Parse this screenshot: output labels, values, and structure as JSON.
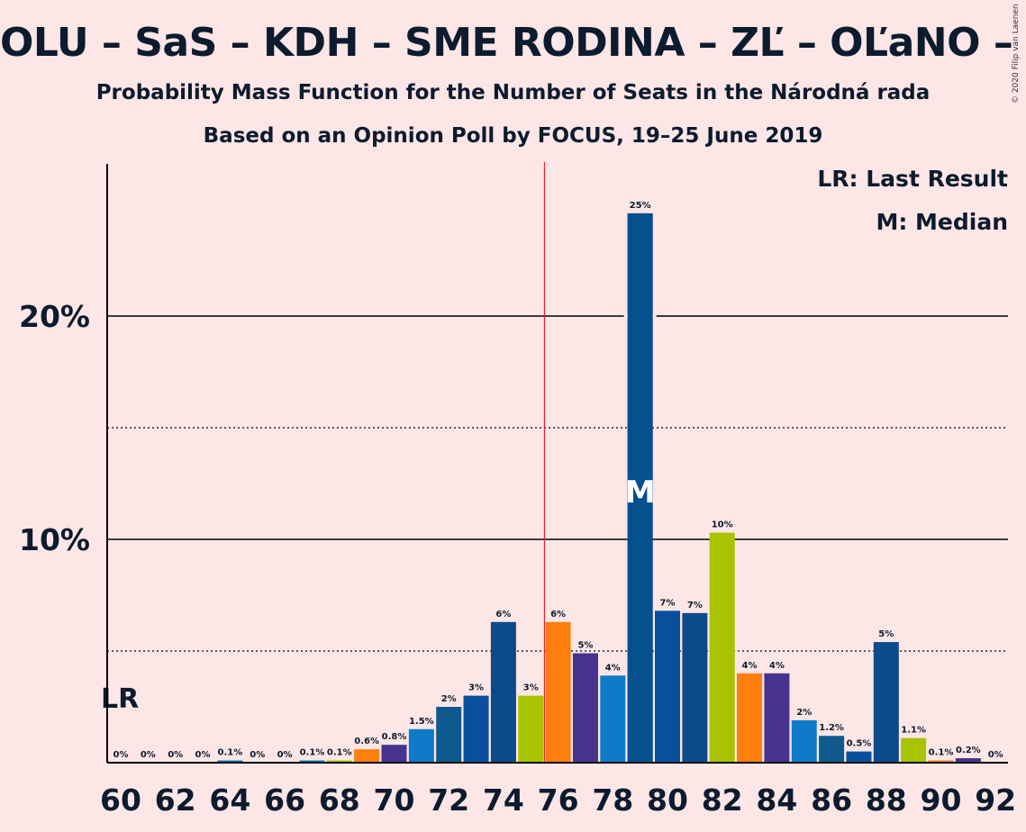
{
  "title": "OLU – SaS – KDH – SME RODINA – ZĽ – OĽaNO – MOS",
  "subtitle1": "Probability Mass Function for the Number of Seats in the Národná rada",
  "subtitle2": "Based on an Opinion Poll by FOCUS, 19–25 June 2019",
  "copyright": "© 2020 Filip van Laenen",
  "legend": {
    "lr": "LR: Last Result",
    "median": "M: Median"
  },
  "markers": {
    "lr_label": "LR",
    "median_label": "M"
  },
  "chart_data": {
    "type": "bar",
    "title": "OLU – SaS – KDH – SME RODINA – ZĽ – OĽaNO – MOS",
    "x": [
      60,
      61,
      62,
      63,
      64,
      65,
      66,
      67,
      68,
      69,
      70,
      71,
      72,
      73,
      74,
      75,
      76,
      77,
      78,
      79,
      80,
      81,
      82,
      83,
      84,
      85,
      86,
      87,
      88,
      89,
      90,
      91,
      92
    ],
    "values": [
      0,
      0,
      0,
      0,
      0.1,
      0,
      0,
      0.1,
      0.1,
      0.6,
      0.8,
      1.5,
      2.5,
      3.0,
      6.3,
      3.0,
      6.3,
      4.9,
      3.9,
      24.6,
      6.8,
      6.7,
      10.3,
      4.0,
      4.0,
      1.9,
      1.2,
      0.5,
      5.4,
      1.1,
      0.1,
      0.2,
      0
    ],
    "labels": [
      "0%",
      "0%",
      "0%",
      "0%",
      "0.1%",
      "0%",
      "0%",
      "0.1%",
      "0.1%",
      "0.6%",
      "0.8%",
      "1.5%",
      "2%",
      "3%",
      "6%",
      "3%",
      "6%",
      "5%",
      "4%",
      "25%",
      "7%",
      "7%",
      "10%",
      "4%",
      "4%",
      "2%",
      "1.2%",
      "0.5%",
      "5%",
      "1.1%",
      "0.1%",
      "0.2%",
      "0%"
    ],
    "colors": [
      "#1f77b4",
      "#1f77b4",
      "#1f77b4",
      "#1f77b4",
      "#0079c8",
      "#1f77b4",
      "#1f77b4",
      "#0079c8",
      "#a8c400",
      "#ff7f0e",
      "#46338f",
      "#0e7bc9",
      "#0e5a8f",
      "#0a4f9e",
      "#0d4a8b",
      "#a8c400",
      "#ff7f0e",
      "#46338f",
      "#0e7bc9",
      "#05518f",
      "#0a4f9e",
      "#0d4a8b",
      "#a8c400",
      "#ff7f0e",
      "#46338f",
      "#0e7bc9",
      "#0e5a8f",
      "#0a4f9e",
      "#0d4a8b",
      "#a8c400",
      "#ff7f0e",
      "#46338f",
      "#0e7bc9"
    ],
    "xticks": [
      60,
      62,
      64,
      66,
      68,
      70,
      72,
      74,
      76,
      78,
      80,
      82,
      84,
      86,
      88,
      90,
      92
    ],
    "ytick_labels": [
      "10%",
      "20%"
    ],
    "ylim": [
      0,
      26.9
    ],
    "last_result": 60,
    "majority_line": 75.5,
    "median": 79,
    "grid": "dotted every 5%, solid at 10% and 20%"
  }
}
